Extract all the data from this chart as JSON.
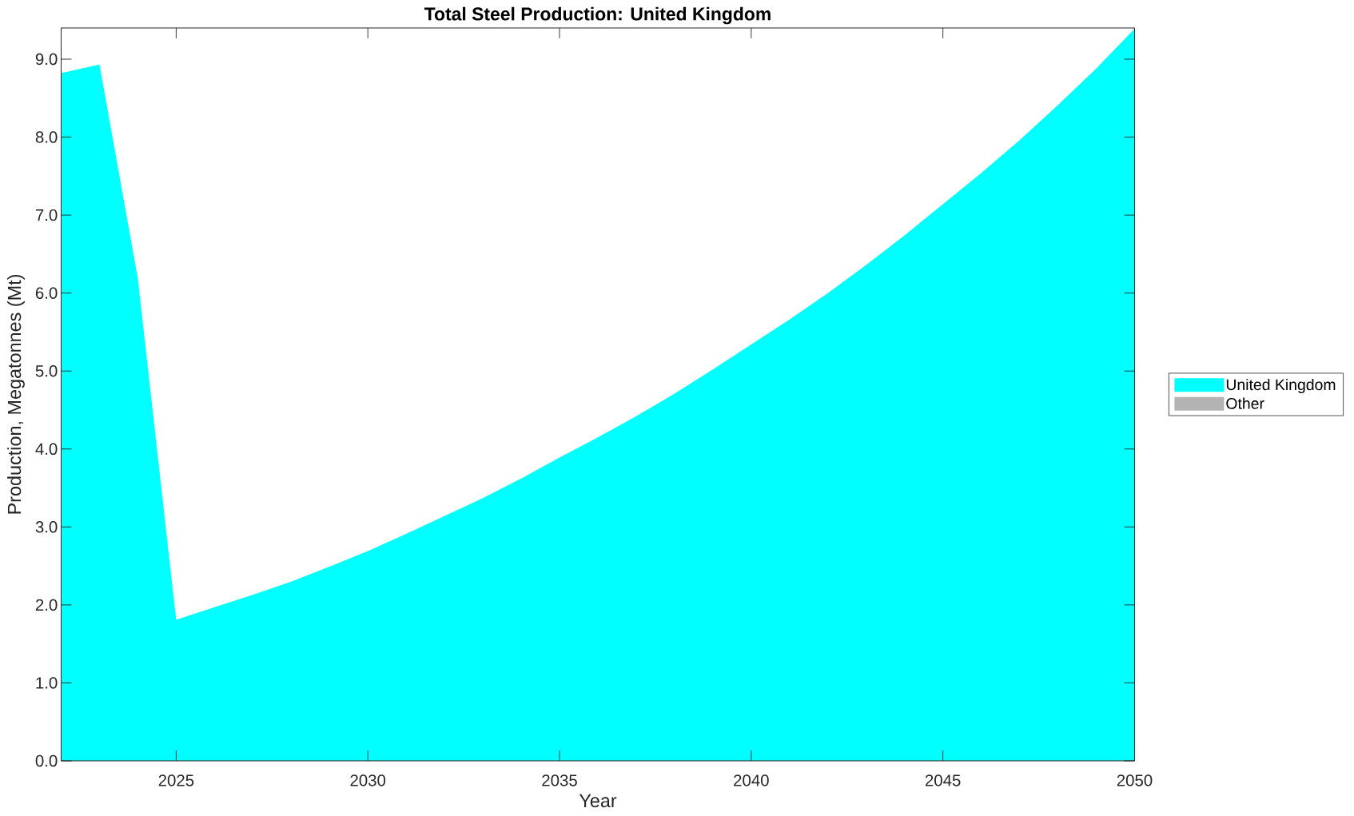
{
  "chart_data": {
    "type": "area",
    "title": "Total Steel Production: United Kingdom",
    "xlabel": "Year",
    "ylabel": "Production, Megatonnes (Mt)",
    "x": [
      2022,
      2023,
      2024,
      2025,
      2026,
      2027,
      2028,
      2029,
      2030,
      2031,
      2032,
      2033,
      2034,
      2035,
      2036,
      2037,
      2038,
      2039,
      2040,
      2041,
      2042,
      2043,
      2044,
      2045,
      2046,
      2047,
      2048,
      2049,
      2050
    ],
    "series": [
      {
        "name": "United Kingdom",
        "color": "#00ffff",
        "values": [
          8.82,
          8.93,
          6.19,
          1.81,
          1.97,
          2.13,
          2.3,
          2.49,
          2.69,
          2.91,
          3.14,
          3.37,
          3.62,
          3.89,
          4.15,
          4.42,
          4.71,
          5.02,
          5.34,
          5.66,
          6.0,
          6.36,
          6.74,
          7.14,
          7.54,
          7.96,
          8.41,
          8.88,
          9.39
        ]
      },
      {
        "name": "Other",
        "color": "#b3b3b3",
        "values": [
          null,
          null,
          null,
          null,
          null,
          null,
          null,
          null,
          null,
          null,
          null,
          null,
          null,
          null,
          null,
          null,
          null,
          null,
          null,
          null,
          null,
          null,
          null,
          null,
          null,
          null,
          null,
          null,
          null
        ]
      }
    ],
    "xlim": [
      2022,
      2050
    ],
    "ylim": [
      0,
      9.4
    ],
    "xticks": [
      2025,
      2030,
      2035,
      2040,
      2045,
      2050
    ],
    "yticks": [
      {
        "value": 0,
        "label": "0.0"
      },
      {
        "value": 1,
        "label": "1.0"
      },
      {
        "value": 2,
        "label": "2.0"
      },
      {
        "value": 3,
        "label": "3.0"
      },
      {
        "value": 4,
        "label": "4.0"
      },
      {
        "value": 5,
        "label": "5.0"
      },
      {
        "value": 6,
        "label": "6.0"
      },
      {
        "value": 7,
        "label": "7.0"
      },
      {
        "value": 8,
        "label": "8.0"
      },
      {
        "value": 9,
        "label": "9.0"
      }
    ],
    "legend": "right"
  }
}
